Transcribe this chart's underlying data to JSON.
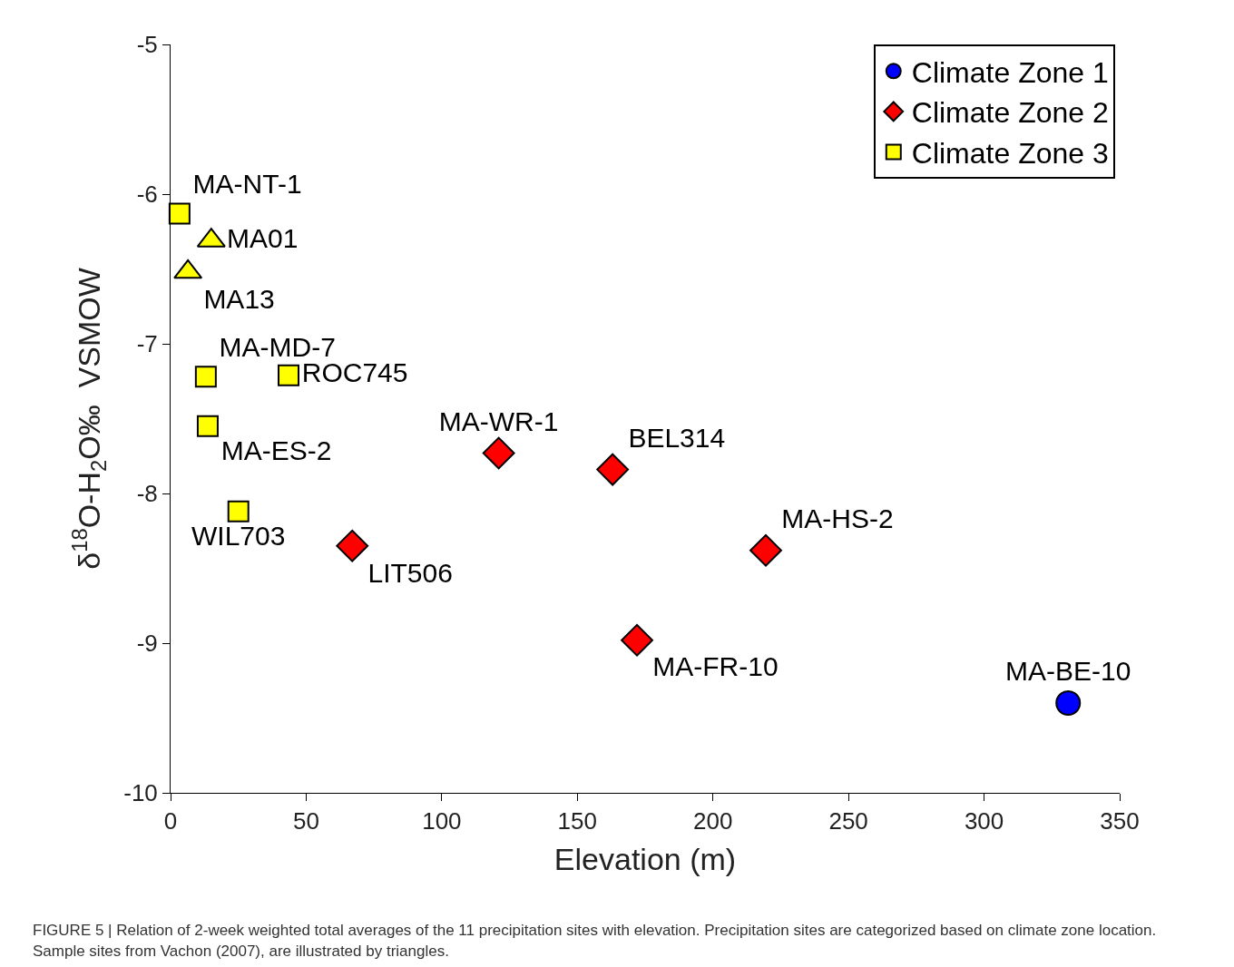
{
  "chart_data": {
    "type": "scatter",
    "xlabel": "Elevation (m)",
    "ylabel": "δ$^{18}$O-H$_{2}$O‰  VSMOW",
    "xlim": [
      0,
      350
    ],
    "xticks": [
      0,
      50,
      100,
      150,
      200,
      250,
      300,
      350
    ],
    "ylim": [
      -10,
      -5
    ],
    "yticks": [
      -10,
      -9,
      -8,
      -7,
      -6,
      -5
    ],
    "legend": "top right",
    "series": [
      {
        "name": "Climate Zone 1",
        "color": "#0000ff",
        "marker": "circle",
        "x": [
          331
        ],
        "values": [
          -9.4
        ],
        "value_labels": [
          "MA-BE-10"
        ]
      },
      {
        "name": "Climate Zone 2",
        "color": "#ff0000",
        "marker": "diamond",
        "x": [
          67,
          121,
          163,
          219.5,
          172
        ],
        "values": [
          -8.35,
          -7.73,
          -7.84,
          -8.38,
          -8.98
        ],
        "value_labels": [
          "LIT506",
          "MA-WR-1",
          "BEL314",
          "MA-HS-2",
          "MA-FR-10"
        ]
      },
      {
        "name": "Climate Zone 3",
        "color": "#ffff00",
        "marker": "square",
        "x": [
          3.3,
          13,
          43.5,
          13.7,
          25
        ],
        "values": [
          -6.13,
          -7.22,
          -7.21,
          -7.55,
          -8.12
        ],
        "value_labels": [
          "MA-NT-1",
          "MA-MD-7",
          "ROC745",
          "MA-ES-2",
          "WIL703"
        ]
      },
      {
        "color": "#ffff00",
        "marker": "triangle",
        "x": [
          15,
          6.4
        ],
        "values": [
          -6.31,
          -6.52
        ],
        "value_labels": [
          "MA01",
          "MA13"
        ]
      }
    ],
    "annotations": [
      "FIGURE 5 | Relation of 2-week weighted total averages of the 11 precipitation sites with elevation. Precipitation sites are categorized based on climate zone location.",
      "Sample sites from Vachon (2007), are illustrated by triangles."
    ]
  }
}
